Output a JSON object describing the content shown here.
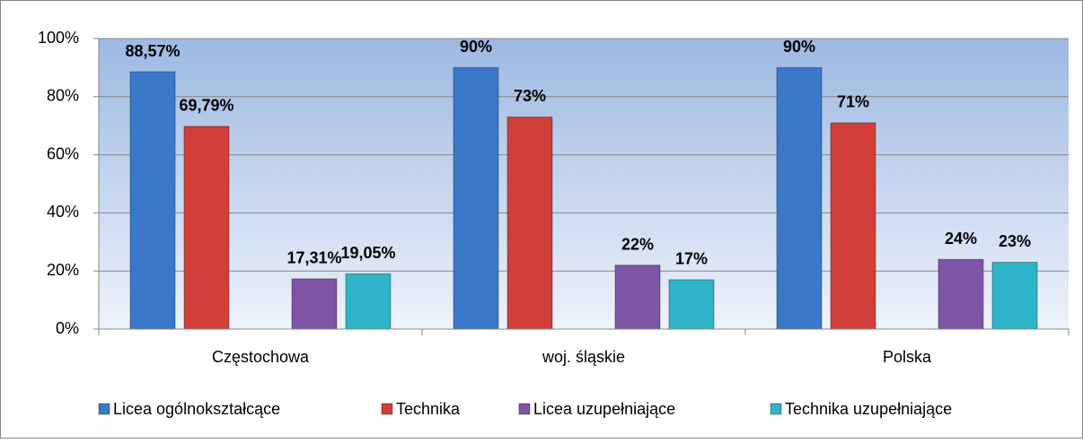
{
  "chart_data": {
    "type": "bar",
    "categories": [
      "Częstochowa",
      "woj. śląskie",
      "Polska"
    ],
    "series": [
      {
        "name": "Licea ogólnokształcące",
        "color": "#3a78c9",
        "values": [
          88.57,
          90,
          90
        ],
        "value_labels": [
          "88,57%",
          "90%",
          "90%"
        ]
      },
      {
        "name": "Technika",
        "color": "#d13f3a",
        "values": [
          69.79,
          73,
          71
        ],
        "value_labels": [
          "69,79%",
          "73%",
          "71%"
        ]
      },
      {
        "name": "Licea uzupełniające",
        "color": "#7d54a6",
        "values": [
          17.31,
          22,
          24
        ],
        "value_labels": [
          "17,31%",
          "22%",
          "24%"
        ]
      },
      {
        "name": "Technika uzupełniające",
        "color": "#2fb3c8",
        "values": [
          19.05,
          17,
          23
        ],
        "value_labels": [
          "19,05%",
          "17%",
          "23%"
        ]
      }
    ],
    "ylim": [
      0,
      100
    ],
    "yticks": [
      {
        "value": 0,
        "label": "0%"
      },
      {
        "value": 20,
        "label": "20%"
      },
      {
        "value": 40,
        "label": "40%"
      },
      {
        "value": 60,
        "label": "60%"
      },
      {
        "value": 80,
        "label": "80%"
      },
      {
        "value": 100,
        "label": "100%"
      }
    ],
    "grid": true,
    "legend": "bottom"
  }
}
